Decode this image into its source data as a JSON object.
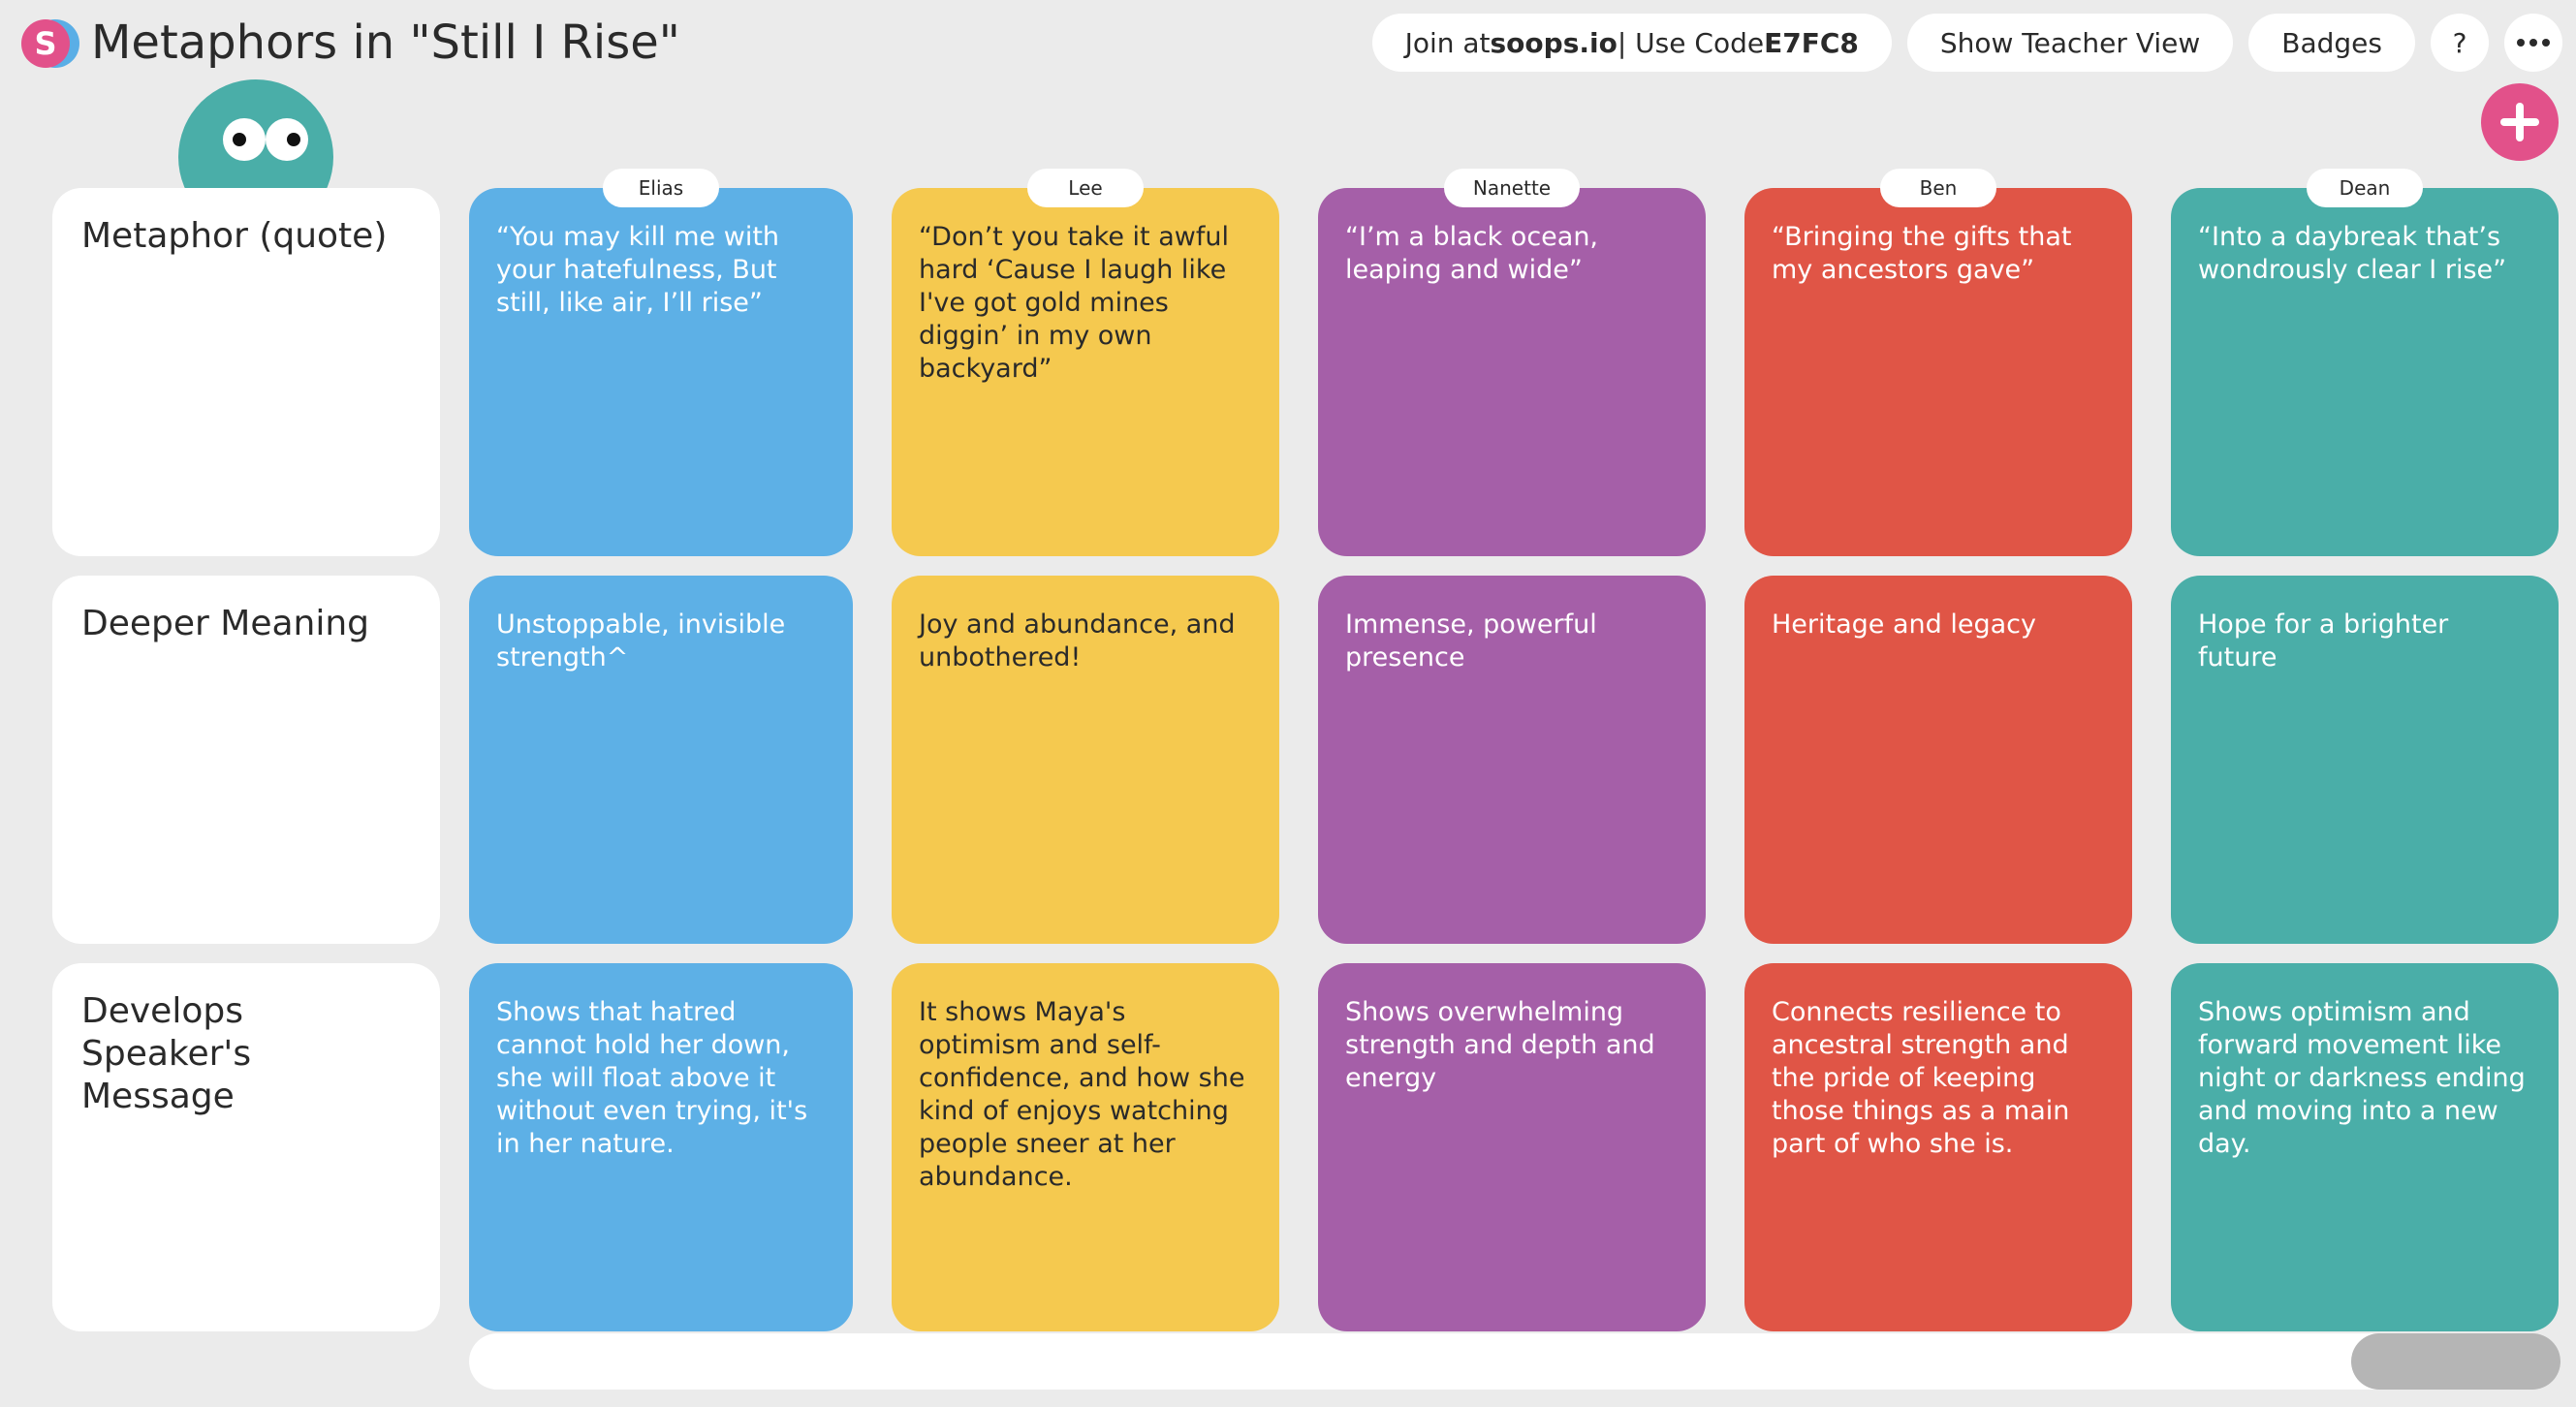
{
  "header": {
    "logo_letter": "S",
    "title": "Metaphors in \"Still I Rise\"",
    "join_prefix": "Join at ",
    "join_site": "soops.io",
    "join_separator": " | Use Code ",
    "join_code": "E7FC8",
    "teacher_view_label": "Show Teacher View",
    "badges_label": "Badges",
    "help_label": "?"
  },
  "colors": {
    "blue": "#5db0e6",
    "yellow": "#f5c94f",
    "purple": "#a55fa8",
    "red": "#e05546",
    "teal": "#4aaea8",
    "accent_pink": "#e2518a"
  },
  "rows": [
    {
      "label": "Metaphor (quote)"
    },
    {
      "label": "Deeper Meaning"
    },
    {
      "label": "Develops Speaker's Message"
    }
  ],
  "columns": [
    {
      "student": "Elias",
      "color": "blue",
      "cells": [
        "“You may kill me with your hatefulness, But still, like air, I’ll rise”",
        "Unstoppable, invisible strength^",
        "Shows that hatred cannot hold her down, she will float above it without even trying, it's in her nature."
      ]
    },
    {
      "student": "Lee",
      "color": "yellow",
      "cells": [
        "“Don’t you take it awful hard ‘Cause I laugh like I've got gold mines diggin’ in my own backyard”",
        "Joy and abundance, and unbothered!",
        "It shows Maya's optimism and self-confidence, and how she kind of enjoys watching people sneer at her abundance."
      ]
    },
    {
      "student": "Nanette",
      "color": "purple",
      "cells": [
        "“I’m a black ocean, leaping and wide”",
        "Immense, powerful presence",
        "Shows overwhelming strength and depth and energy"
      ]
    },
    {
      "student": "Ben",
      "color": "red",
      "cells": [
        "“Bringing the gifts that my ancestors gave”",
        "Heritage and legacy",
        "Connects resilience to ancestral strength and the pride of keeping those things as a main part of who she is."
      ]
    },
    {
      "student": "Dean",
      "color": "teal",
      "cells": [
        "“Into a daybreak that’s wondrously clear I rise”",
        "Hope for a brighter future",
        "Shows optimism and forward movement like night or darkness ending and moving into a new day."
      ]
    }
  ]
}
